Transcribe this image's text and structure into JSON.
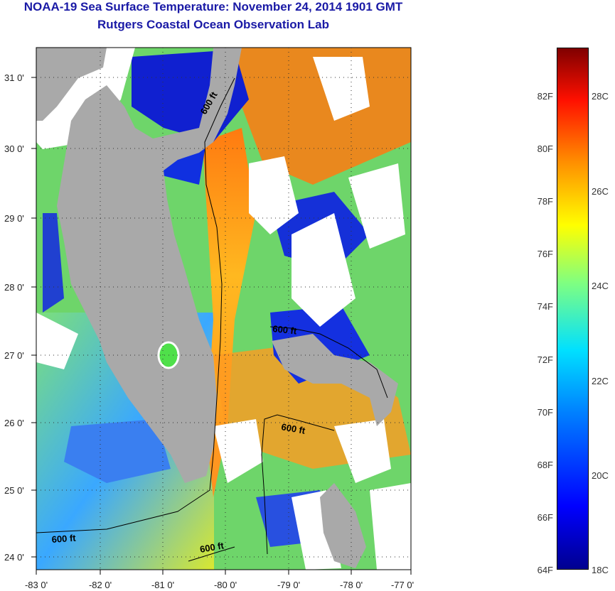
{
  "header": {
    "title": "NOAA-19 Sea Surface Temperature:  November 24, 2014 1901 GMT",
    "subtitle": "Rutgers Coastal Ocean Observation Lab"
  },
  "map": {
    "lat_labels": [
      "31 0'",
      "30 0'",
      "29 0'",
      "28 0'",
      "27 0'",
      "26 0'",
      "25 0'",
      "24 0'"
    ],
    "lon_labels": [
      "-83 0'",
      "-82 0'",
      "-81 0'",
      "-80 0'",
      "-79 0'",
      "-78 0'",
      "-77 0'"
    ],
    "contour_labels": [
      "600 ft",
      "600 ft",
      "600 ft",
      "600 ft",
      "600 ft"
    ],
    "land_color": "#a8a8a8",
    "cloud_color": "#ffffff"
  },
  "colorbar": {
    "fahrenheit": [
      "82F",
      "80F",
      "78F",
      "76F",
      "74F",
      "72F",
      "70F",
      "68F",
      "66F",
      "64F"
    ],
    "celsius": [
      "28C",
      "26C",
      "24C",
      "22C",
      "20C",
      "18C"
    ],
    "colors": [
      "#000080",
      "#0000ff",
      "#0080ff",
      "#00ffff",
      "#80ff80",
      "#ffff00",
      "#ff8000",
      "#ff0000",
      "#800000"
    ]
  }
}
